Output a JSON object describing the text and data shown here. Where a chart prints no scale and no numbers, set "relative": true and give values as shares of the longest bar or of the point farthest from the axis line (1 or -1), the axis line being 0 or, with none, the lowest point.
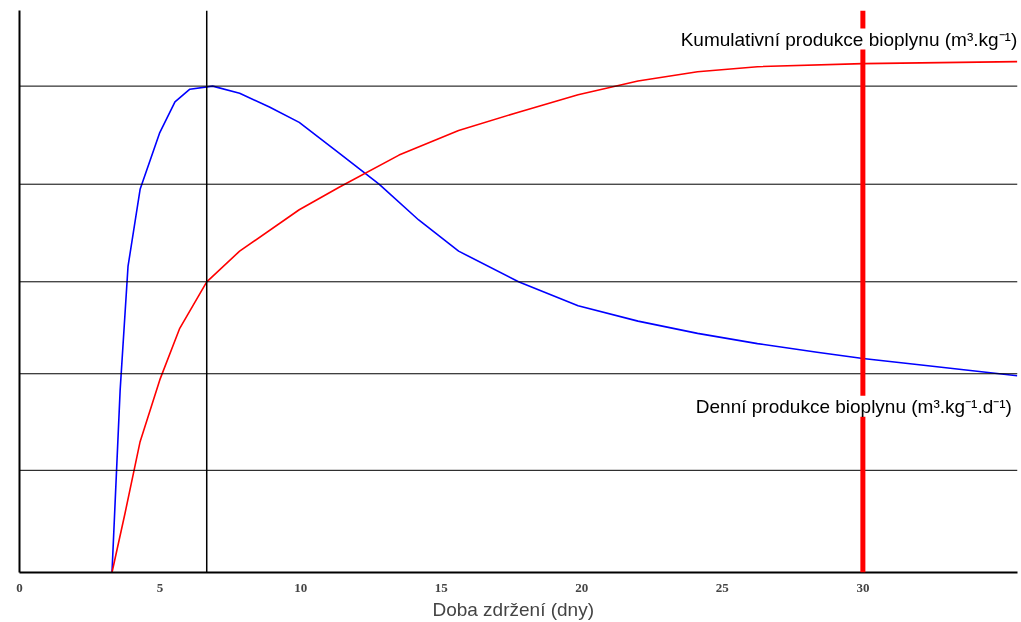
{
  "chart_data": {
    "type": "line",
    "relative": true,
    "xlabel": "Doba zdržení   (dny)",
    "xlim": [
      0,
      35.5
    ],
    "xticks": [
      0,
      5,
      10,
      15,
      20,
      25,
      30
    ],
    "tick_labels": "x",
    "grid": false,
    "marker": "none",
    "line_style": "solid",
    "series": [
      {
        "name": "Denní produkce bioplynu  (m³.kg⁻¹.d⁻¹)",
        "color": "#0000ff",
        "x": [
          3.29,
          3.58,
          3.86,
          4.29,
          4.99,
          5.53,
          6.06,
          6.87,
          7.83,
          8.89,
          9.95,
          11.37,
          12.79,
          14.2,
          15.62,
          17.75,
          19.87,
          22.0,
          24.12,
          26.25,
          28.37,
          30.0,
          31.92,
          35.49
        ],
        "values": [
          0,
          0.357,
          0.599,
          0.75,
          0.861,
          0.921,
          0.946,
          0.952,
          0.938,
          0.911,
          0.881,
          0.821,
          0.76,
          0.69,
          0.629,
          0.569,
          0.522,
          0.492,
          0.468,
          0.448,
          0.431,
          0.419,
          0.407,
          0.385
        ]
      },
      {
        "name": "Kumulativní produkce bioplynu (m³.kg⁻¹)",
        "color": "#ff0000",
        "x": [
          3.29,
          3.75,
          4.29,
          4.99,
          5.7,
          6.66,
          7.83,
          9.95,
          11.37,
          13.5,
          15.62,
          17.75,
          19.87,
          22.0,
          24.12,
          26.25,
          30.0,
          35.49
        ],
        "values": [
          0,
          0.115,
          0.256,
          0.377,
          0.478,
          0.569,
          0.629,
          0.71,
          0.754,
          0.817,
          0.865,
          0.901,
          0.935,
          0.962,
          0.98,
          0.99,
          0.996,
          1.0
        ]
      }
    ],
    "ref_lines": [
      {
        "axis": "y",
        "value": 0.2,
        "color": "#000000"
      },
      {
        "axis": "y",
        "value": 0.389,
        "color": "#000000"
      },
      {
        "axis": "y",
        "value": 0.569,
        "color": "#000000"
      },
      {
        "axis": "y",
        "value": 0.76,
        "color": "#000000"
      },
      {
        "axis": "y",
        "value": 0.952,
        "color": "#000000"
      },
      {
        "axis": "x",
        "value": 6.66,
        "color": "#000000"
      },
      {
        "axis": "x",
        "value": 30,
        "color": "#ff0000"
      }
    ]
  }
}
